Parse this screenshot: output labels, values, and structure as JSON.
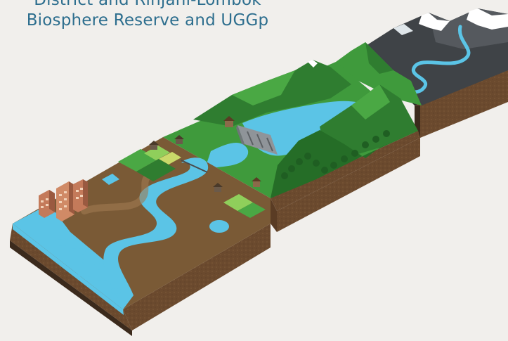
{
  "caption": {
    "line1": "District and Rinjani-Lombok",
    "line2": "Biosphere Reserve and UGGp"
  },
  "colors": {
    "background": "#f1efec",
    "caption_text": "#2d6e8e",
    "water": "#5bc4e6",
    "grass": "#3f9a3c",
    "forest": "#2f7d30",
    "soil": "#6b4a2e",
    "mountain_rock": "#3f4347",
    "snow": "#ffffff"
  },
  "illustration": {
    "subject": "landscape-cross-section-river-from-mountain-to-sea",
    "segments": [
      "mountain-glacier-block",
      "reservoir-dam-block",
      "lowland-delta-block"
    ]
  }
}
